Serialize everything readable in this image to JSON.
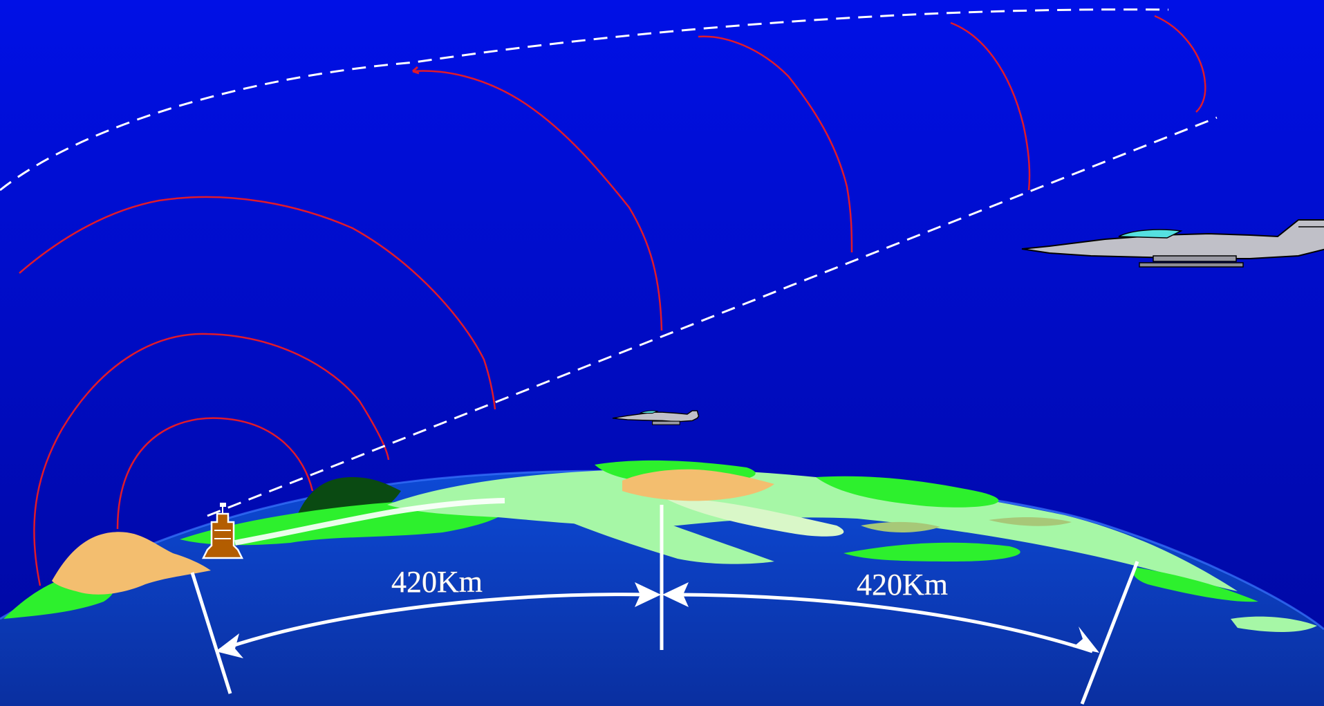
{
  "diagram": {
    "distance_left_label": "420Km",
    "distance_right_label": "420Km"
  },
  "icons": {
    "aircraft_far": "fighter-jet-icon",
    "aircraft_near": "fighter-jet-icon",
    "ground_station": "radar-station-icon"
  },
  "colors": {
    "sky_top": "#0010e6",
    "sky_bottom": "#00089e",
    "earth": "#0a3fc4",
    "radar_wave": "#e01a2b",
    "horizon_line": "#ffffff",
    "land_green": "#2df02d",
    "land_light": "#a6f7a6",
    "land_tan": "#f3be6f",
    "station": "#b35d00"
  }
}
